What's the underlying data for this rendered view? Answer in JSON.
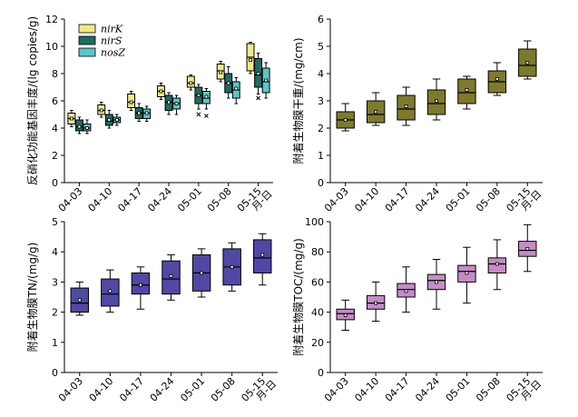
{
  "chart_data": [
    {
      "type": "box",
      "ylabel": "反硝化功能基因丰度/(lg copies/g)",
      "ylim": [
        0,
        12
      ],
      "yticks": [
        0,
        2,
        4,
        6,
        8,
        10,
        12
      ],
      "categories": [
        "04-03",
        "04-10",
        "04-17",
        "04-24",
        "05-01",
        "05-08",
        "05-15"
      ],
      "extra_xlabel": "月-日",
      "legend": "top-left",
      "series": [
        {
          "name": "nirK",
          "color": "#f2e985",
          "boxes": [
            {
              "min": 4.1,
              "q1": 4.3,
              "median": 4.7,
              "mean": 4.7,
              "q3": 5.1,
              "max": 5.3,
              "outliers": []
            },
            {
              "min": 4.8,
              "q1": 5.0,
              "median": 5.3,
              "mean": 5.3,
              "q3": 5.7,
              "max": 5.9,
              "outliers": []
            },
            {
              "min": 5.3,
              "q1": 5.5,
              "median": 5.9,
              "mean": 5.9,
              "q3": 6.5,
              "max": 6.7,
              "outliers": []
            },
            {
              "min": 6.1,
              "q1": 6.3,
              "median": 6.7,
              "mean": 6.7,
              "q3": 7.1,
              "max": 7.3,
              "outliers": []
            },
            {
              "min": 6.8,
              "q1": 7.0,
              "median": 7.3,
              "mean": 7.3,
              "q3": 7.8,
              "max": 7.9,
              "outliers": []
            },
            {
              "min": 7.4,
              "q1": 7.6,
              "median": 8.2,
              "mean": 8.1,
              "q3": 8.7,
              "max": 8.9,
              "outliers": []
            },
            {
              "min": 8.0,
              "q1": 8.2,
              "median": 9.2,
              "mean": 9.0,
              "q3": 10.2,
              "max": 10.3,
              "outliers": []
            }
          ]
        },
        {
          "name": "nirS",
          "color": "#1e6b64",
          "boxes": [
            {
              "min": 3.6,
              "q1": 3.8,
              "median": 4.1,
              "mean": 4.1,
              "q3": 4.6,
              "max": 4.8,
              "outliers": []
            },
            {
              "min": 4.0,
              "q1": 4.2,
              "median": 4.5,
              "mean": 4.6,
              "q3": 5.0,
              "max": 5.3,
              "outliers": []
            },
            {
              "min": 4.5,
              "q1": 4.7,
              "median": 5.1,
              "mean": 5.1,
              "q3": 5.5,
              "max": 5.8,
              "outliers": []
            },
            {
              "min": 5.0,
              "q1": 5.3,
              "median": 5.9,
              "mean": 5.9,
              "q3": 6.4,
              "max": 6.6,
              "outliers": []
            },
            {
              "min": 5.4,
              "q1": 5.8,
              "median": 6.4,
              "mean": 6.4,
              "q3": 7.0,
              "max": 7.2,
              "outliers": [
                5.0
              ]
            },
            {
              "min": 6.2,
              "q1": 6.6,
              "median": 7.3,
              "mean": 7.3,
              "q3": 8.0,
              "max": 8.5,
              "outliers": []
            },
            {
              "min": 6.5,
              "q1": 7.0,
              "median": 7.9,
              "mean": 8.0,
              "q3": 9.1,
              "max": 9.5,
              "outliers": [
                6.2
              ]
            }
          ]
        },
        {
          "name": "nosZ",
          "color": "#5cc6c6",
          "boxes": [
            {
              "min": 3.6,
              "q1": 3.8,
              "median": 4.0,
              "mean": 4.0,
              "q3": 4.3,
              "max": 4.6,
              "outliers": []
            },
            {
              "min": 4.2,
              "q1": 4.4,
              "median": 4.6,
              "mean": 4.6,
              "q3": 4.8,
              "max": 5.0,
              "outliers": []
            },
            {
              "min": 4.5,
              "q1": 4.7,
              "median": 5.1,
              "mean": 5.1,
              "q3": 5.4,
              "max": 5.6,
              "outliers": []
            },
            {
              "min": 5.0,
              "q1": 5.4,
              "median": 5.8,
              "mean": 5.8,
              "q3": 6.2,
              "max": 6.4,
              "outliers": []
            },
            {
              "min": 5.4,
              "q1": 5.8,
              "median": 6.2,
              "mean": 6.3,
              "q3": 6.7,
              "max": 6.9,
              "outliers": [
                4.9
              ]
            },
            {
              "min": 5.8,
              "q1": 6.2,
              "median": 6.8,
              "mean": 6.9,
              "q3": 7.4,
              "max": 7.7,
              "outliers": []
            },
            {
              "min": 6.2,
              "q1": 6.6,
              "median": 7.4,
              "mean": 7.5,
              "q3": 8.4,
              "max": 8.8,
              "outliers": []
            }
          ]
        }
      ]
    },
    {
      "type": "box",
      "ylabel": "附着生物膜干重/(mg/cm)",
      "ylim": [
        0,
        6
      ],
      "yticks": [
        0,
        1,
        2,
        3,
        4,
        5,
        6
      ],
      "categories": [
        "04-03",
        "04-10",
        "04-17",
        "04-24",
        "05-01",
        "05-08",
        "05-15"
      ],
      "extra_xlabel": "月-日",
      "series": [
        {
          "name": "",
          "color": "#7d7a2e",
          "boxes": [
            {
              "min": 1.9,
              "q1": 2.0,
              "median": 2.3,
              "mean": 2.3,
              "q3": 2.6,
              "max": 2.9,
              "outliers": []
            },
            {
              "min": 2.1,
              "q1": 2.2,
              "median": 2.5,
              "mean": 2.6,
              "q3": 3.0,
              "max": 3.3,
              "outliers": []
            },
            {
              "min": 2.1,
              "q1": 2.3,
              "median": 2.7,
              "mean": 2.8,
              "q3": 3.2,
              "max": 3.5,
              "outliers": []
            },
            {
              "min": 2.3,
              "q1": 2.5,
              "median": 2.9,
              "mean": 3.0,
              "q3": 3.4,
              "max": 3.8,
              "outliers": []
            },
            {
              "min": 2.7,
              "q1": 2.9,
              "median": 3.3,
              "mean": 3.4,
              "q3": 3.8,
              "max": 3.9,
              "outliers": []
            },
            {
              "min": 3.2,
              "q1": 3.3,
              "median": 3.7,
              "mean": 3.8,
              "q3": 4.1,
              "max": 4.4,
              "outliers": []
            },
            {
              "min": 3.8,
              "q1": 3.9,
              "median": 4.3,
              "mean": 4.4,
              "q3": 4.9,
              "max": 5.2,
              "outliers": []
            }
          ]
        }
      ]
    },
    {
      "type": "box",
      "ylabel": "附着生物膜TN/(mg/g)",
      "ylim": [
        0,
        5
      ],
      "yticks": [
        0,
        1,
        2,
        3,
        4,
        5
      ],
      "categories": [
        "04-03",
        "04-10",
        "04-17",
        "04-24",
        "05-01",
        "05-08",
        "05-15"
      ],
      "extra_xlabel": "月-日",
      "series": [
        {
          "name": "",
          "color": "#5048a3",
          "boxes": [
            {
              "min": 1.9,
              "q1": 2.0,
              "median": 2.3,
              "mean": 2.4,
              "q3": 2.8,
              "max": 3.0,
              "outliers": []
            },
            {
              "min": 2.0,
              "q1": 2.2,
              "median": 2.6,
              "mean": 2.7,
              "q3": 3.1,
              "max": 3.4,
              "outliers": []
            },
            {
              "min": 2.1,
              "q1": 2.6,
              "median": 2.9,
              "mean": 2.9,
              "q3": 3.3,
              "max": 3.5,
              "outliers": []
            },
            {
              "min": 2.4,
              "q1": 2.6,
              "median": 3.1,
              "mean": 3.2,
              "q3": 3.7,
              "max": 3.9,
              "outliers": []
            },
            {
              "min": 2.5,
              "q1": 2.7,
              "median": 3.3,
              "mean": 3.3,
              "q3": 3.9,
              "max": 4.1,
              "outliers": []
            },
            {
              "min": 2.7,
              "q1": 2.9,
              "median": 3.5,
              "mean": 3.5,
              "q3": 4.1,
              "max": 4.3,
              "outliers": []
            },
            {
              "min": 2.9,
              "q1": 3.3,
              "median": 3.8,
              "mean": 3.9,
              "q3": 4.4,
              "max": 4.6,
              "outliers": []
            }
          ]
        }
      ]
    },
    {
      "type": "box",
      "ylabel": "附着生物膜TOC/(mg/g)",
      "ylim": [
        0,
        100
      ],
      "yticks": [
        0,
        20,
        40,
        60,
        80,
        100
      ],
      "categories": [
        "04-03",
        "04-10",
        "04-17",
        "04-24",
        "05-01",
        "05-08",
        "05-15"
      ],
      "extra_xlabel": "月-日",
      "series": [
        {
          "name": "",
          "color": "#c58cc7",
          "boxes": [
            {
              "min": 28,
              "q1": 35,
              "median": 39,
              "mean": 38,
              "q3": 42,
              "max": 48,
              "outliers": []
            },
            {
              "min": 34,
              "q1": 42,
              "median": 46,
              "mean": 46,
              "q3": 51,
              "max": 60,
              "outliers": []
            },
            {
              "min": 40,
              "q1": 50,
              "median": 55,
              "mean": 54,
              "q3": 59,
              "max": 70,
              "outliers": []
            },
            {
              "min": 42,
              "q1": 55,
              "median": 61,
              "mean": 60,
              "q3": 65,
              "max": 75,
              "outliers": []
            },
            {
              "min": 46,
              "q1": 60,
              "median": 67,
              "mean": 66,
              "q3": 71,
              "max": 83,
              "outliers": []
            },
            {
              "min": 55,
              "q1": 66,
              "median": 72,
              "mean": 72,
              "q3": 76,
              "max": 88,
              "outliers": []
            },
            {
              "min": 67,
              "q1": 77,
              "median": 81,
              "mean": 82,
              "q3": 87,
              "max": 98,
              "outliers": []
            }
          ]
        }
      ]
    }
  ]
}
